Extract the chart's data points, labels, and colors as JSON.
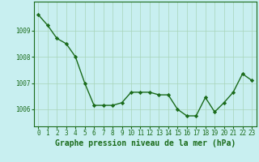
{
  "x": [
    0,
    1,
    2,
    3,
    4,
    5,
    6,
    7,
    8,
    9,
    10,
    11,
    12,
    13,
    14,
    15,
    16,
    17,
    18,
    19,
    20,
    21,
    22,
    23
  ],
  "y": [
    1009.6,
    1009.2,
    1008.7,
    1008.5,
    1008.0,
    1007.0,
    1006.15,
    1006.15,
    1006.15,
    1006.25,
    1006.65,
    1006.65,
    1006.65,
    1006.55,
    1006.55,
    1006.0,
    1005.75,
    1005.75,
    1006.45,
    1005.9,
    1006.25,
    1006.65,
    1007.35,
    1007.1
  ],
  "line_color": "#1a6b1a",
  "marker": "D",
  "markersize": 2.2,
  "linewidth": 1.0,
  "bg_color": "#c8eff0",
  "grid_color": "#a8d4b8",
  "xlabel": "Graphe pression niveau de la mer (hPa)",
  "xlabel_color": "#1a6b1a",
  "xlabel_fontsize": 7.0,
  "tick_color": "#1a6b1a",
  "tick_fontsize": 5.5,
  "yticks": [
    1006,
    1007,
    1008,
    1009
  ],
  "ylim": [
    1005.35,
    1010.1
  ],
  "xlim": [
    -0.5,
    23.5
  ],
  "xticks": [
    0,
    1,
    2,
    3,
    4,
    5,
    6,
    7,
    8,
    9,
    10,
    11,
    12,
    13,
    14,
    15,
    16,
    17,
    18,
    19,
    20,
    21,
    22,
    23
  ]
}
